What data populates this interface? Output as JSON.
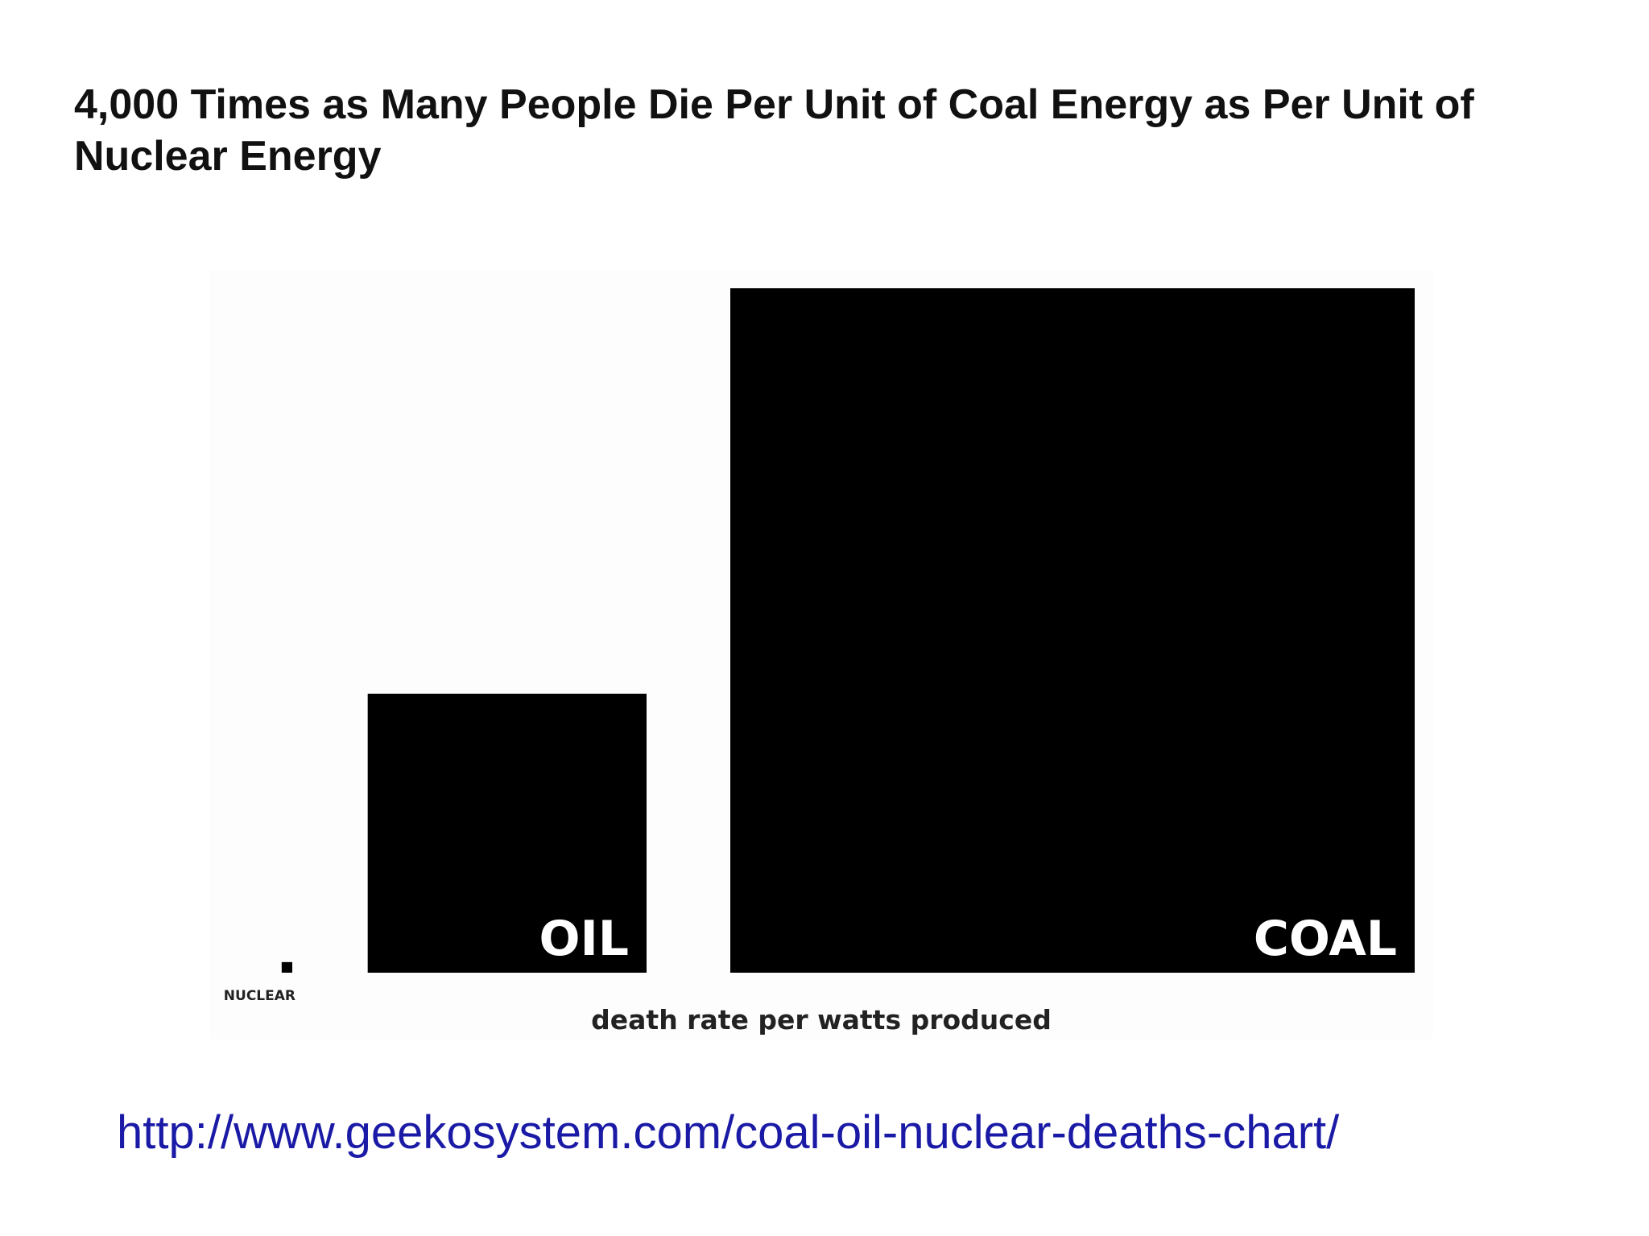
{
  "slide": {
    "title": "4,000 Times as Many People Die Per Unit of Coal Energy as Per Unit of Nuclear Energy",
    "source_url": "http://www.geekosystem.com/coal-oil-nuclear-deaths-chart/"
  },
  "colors": {
    "squares": "#000000",
    "square_label": "#ffffff",
    "outside_label": "#222222",
    "link": "#1a1aa6"
  },
  "chart_data": {
    "type": "area-squares",
    "title": "",
    "xlabel": "death rate per watts produced",
    "ylabel": "",
    "categories": [
      "NUCLEAR",
      "OIL",
      "COAL"
    ],
    "values": [
      0.00024,
      0.166,
      1.0
    ],
    "value_unit": "relative area (COAL = 1)",
    "grid": false,
    "legend": "none"
  }
}
